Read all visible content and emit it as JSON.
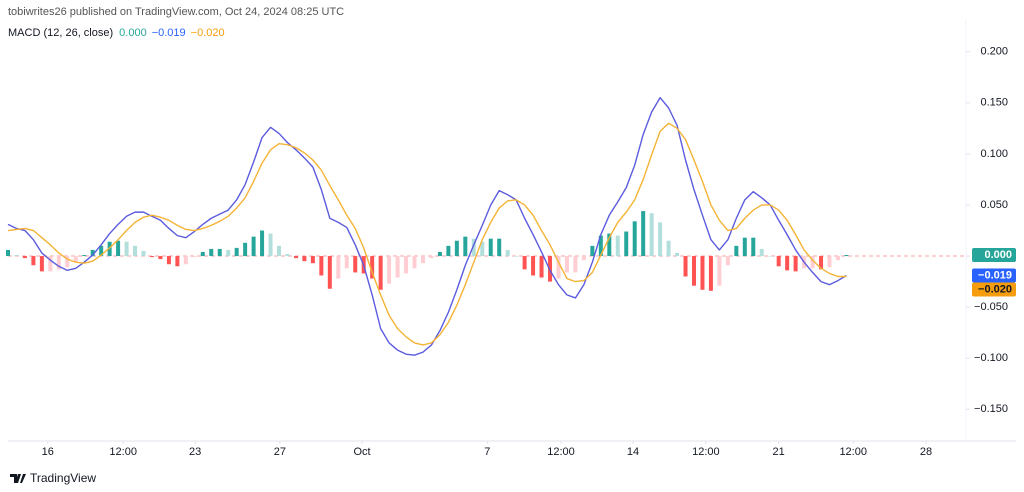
{
  "header": {
    "text": "tobiwrites26 published on TradingView.com, Oct 24, 2024 08:25 UTC"
  },
  "footer": {
    "brand": "TradingView"
  },
  "chart_data": {
    "type": "line",
    "legend": {
      "title": "MACD (12, 26, close)",
      "values": [
        "0.000",
        "−0.019",
        "−0.020"
      ]
    },
    "xlim": [
      0,
      113
    ],
    "ylim": [
      -0.18,
      0.231
    ],
    "grid": false,
    "xticks": [
      {
        "value": 4.7,
        "label": "16"
      },
      {
        "value": 13.6,
        "label": "12:00"
      },
      {
        "value": 22.1,
        "label": "23"
      },
      {
        "value": 32.1,
        "label": "27"
      },
      {
        "value": 41.8,
        "label": "Oct"
      },
      {
        "value": 56.6,
        "label": "7"
      },
      {
        "value": 65.3,
        "label": "12:00"
      },
      {
        "value": 73.8,
        "label": "14"
      },
      {
        "value": 82.4,
        "label": "12:00"
      },
      {
        "value": 91.0,
        "label": "21"
      },
      {
        "value": 99.8,
        "label": "12:00"
      },
      {
        "value": 108.4,
        "label": "28"
      }
    ],
    "yticks": [
      {
        "value": 0.2,
        "label": "0.200"
      },
      {
        "value": 0.15,
        "label": "0.150"
      },
      {
        "value": 0.1,
        "label": "0.100"
      },
      {
        "value": 0.05,
        "label": "0.050"
      },
      {
        "value": 0,
        "label": "0.000"
      },
      {
        "value": -0.05,
        "label": "−0.050"
      },
      {
        "value": -0.1,
        "label": "−0.100"
      },
      {
        "value": -0.15,
        "label": "−0.150"
      }
    ],
    "histogram_colors": {
      "rising_above": "#26a69a",
      "falling_above": "#b2dfdb",
      "rising_below": "#ffcdd2",
      "falling_below": "#ff5252"
    },
    "x": [
      0,
      1,
      2,
      3,
      4,
      5,
      6,
      7,
      8,
      9,
      10,
      11,
      12,
      13,
      14,
      15,
      16,
      17,
      18,
      19,
      20,
      21,
      22,
      23,
      24,
      25,
      26,
      27,
      28,
      29,
      30,
      31,
      32,
      33,
      34,
      35,
      36,
      37,
      38,
      39,
      40,
      41,
      42,
      43,
      44,
      45,
      46,
      47,
      48,
      49,
      50,
      51,
      52,
      53,
      54,
      55,
      56,
      57,
      58,
      59,
      60,
      61,
      62,
      63,
      64,
      65,
      66,
      67,
      68,
      69,
      70,
      71,
      72,
      73,
      74,
      75,
      76,
      77,
      78,
      79,
      80,
      81,
      82,
      83,
      84,
      85,
      86,
      87,
      88,
      89,
      90,
      91,
      92,
      93,
      94,
      95,
      96,
      97,
      98,
      99
    ],
    "series": [
      {
        "type": "histogram",
        "color": "#26a69a",
        "values": [
          0.006,
          0.001,
          -0.002,
          -0.009,
          -0.015,
          -0.015,
          -0.013,
          -0.011,
          -0.006,
          0.001,
          0.006,
          0.01,
          0.014,
          0.015,
          0.014,
          0.01,
          0.005,
          -0.001,
          -0.003,
          -0.008,
          -0.01,
          -0.008,
          -0.001,
          0.004,
          0.007,
          0.007,
          0.006,
          0.008,
          0.013,
          0.019,
          0.025,
          0.022,
          0.01,
          0.002,
          -0.002,
          -0.005,
          -0.007,
          -0.019,
          -0.032,
          -0.022,
          -0.012,
          -0.016,
          -0.017,
          -0.022,
          -0.033,
          -0.027,
          -0.021,
          -0.017,
          -0.012,
          -0.007,
          -0.002,
          0.004,
          0.01,
          0.015,
          0.019,
          0.017,
          0.014,
          0.017,
          0.017,
          0.006,
          0.0,
          -0.013,
          -0.019,
          -0.021,
          -0.025,
          -0.022,
          -0.016,
          -0.016,
          -0.004,
          0.01,
          0.02,
          0.022,
          0.02,
          0.024,
          0.034,
          0.044,
          0.042,
          0.033,
          0.015,
          0.003,
          -0.02,
          -0.029,
          -0.033,
          -0.034,
          -0.029,
          -0.009,
          0.01,
          0.018,
          0.018,
          0.007,
          0.0,
          -0.01,
          -0.014,
          -0.015,
          -0.012,
          -0.012,
          -0.013,
          -0.011,
          -0.004,
          0.001
        ]
      },
      {
        "type": "line",
        "color": "#5b5bdf",
        "tag_color": "#2962ff",
        "values": [
          0.031,
          0.027,
          0.025,
          0.016,
          0.003,
          -0.004,
          -0.01,
          -0.014,
          -0.012,
          -0.006,
          0.001,
          0.011,
          0.022,
          0.031,
          0.039,
          0.043,
          0.043,
          0.039,
          0.035,
          0.027,
          0.02,
          0.018,
          0.024,
          0.031,
          0.037,
          0.041,
          0.045,
          0.055,
          0.07,
          0.092,
          0.116,
          0.126,
          0.12,
          0.111,
          0.104,
          0.096,
          0.087,
          0.065,
          0.037,
          0.033,
          0.028,
          0.011,
          -0.009,
          -0.038,
          -0.071,
          -0.085,
          -0.092,
          -0.096,
          -0.097,
          -0.094,
          -0.087,
          -0.073,
          -0.055,
          -0.033,
          -0.009,
          0.011,
          0.03,
          0.05,
          0.064,
          0.06,
          0.055,
          0.037,
          0.021,
          0.004,
          -0.014,
          -0.028,
          -0.038,
          -0.041,
          -0.028,
          -0.006,
          0.021,
          0.04,
          0.053,
          0.067,
          0.089,
          0.119,
          0.141,
          0.155,
          0.145,
          0.128,
          0.094,
          0.065,
          0.04,
          0.016,
          0.006,
          0.016,
          0.037,
          0.055,
          0.063,
          0.057,
          0.05,
          0.035,
          0.021,
          0.006,
          -0.006,
          -0.016,
          -0.025,
          -0.028,
          -0.024,
          -0.019
        ]
      },
      {
        "type": "line",
        "color": "#f5b335",
        "tag_color": "#f59d0c",
        "values": [
          0.025,
          0.026,
          0.027,
          0.025,
          0.018,
          0.011,
          0.003,
          -0.003,
          -0.006,
          -0.007,
          -0.005,
          0.001,
          0.008,
          0.016,
          0.025,
          0.033,
          0.038,
          0.04,
          0.038,
          0.035,
          0.03,
          0.026,
          0.025,
          0.027,
          0.03,
          0.034,
          0.039,
          0.047,
          0.057,
          0.073,
          0.091,
          0.104,
          0.11,
          0.109,
          0.106,
          0.101,
          0.094,
          0.084,
          0.069,
          0.055,
          0.04,
          0.027,
          0.008,
          -0.016,
          -0.038,
          -0.058,
          -0.071,
          -0.079,
          -0.085,
          -0.087,
          -0.085,
          -0.077,
          -0.065,
          -0.048,
          -0.028,
          -0.006,
          0.016,
          0.033,
          0.047,
          0.054,
          0.055,
          0.05,
          0.04,
          0.025,
          0.011,
          -0.006,
          -0.022,
          -0.025,
          -0.024,
          -0.016,
          0.001,
          0.018,
          0.033,
          0.043,
          0.055,
          0.075,
          0.099,
          0.122,
          0.13,
          0.125,
          0.114,
          0.094,
          0.073,
          0.05,
          0.035,
          0.025,
          0.027,
          0.037,
          0.045,
          0.05,
          0.05,
          0.045,
          0.035,
          0.021,
          0.006,
          -0.004,
          -0.012,
          -0.017,
          -0.02,
          -0.02
        ]
      }
    ]
  }
}
